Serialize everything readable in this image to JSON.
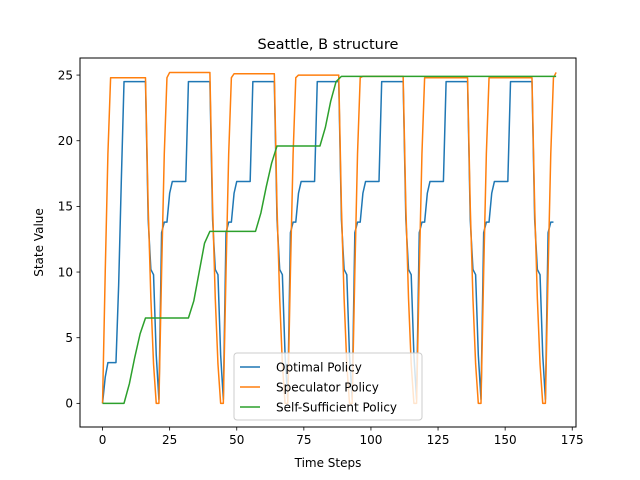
{
  "chart_data": {
    "type": "line",
    "title": "Seattle, B structure",
    "xlabel": "Time Steps",
    "ylabel": "State Value",
    "xlim": [
      -8.4,
      176.4
    ],
    "ylim": [
      -1.8,
      26.3
    ],
    "xticks": [
      0,
      25,
      50,
      75,
      100,
      125,
      150,
      175
    ],
    "yticks": [
      0,
      5,
      10,
      15,
      20,
      25
    ],
    "grid": false,
    "legend_position": "lower-center",
    "series": [
      {
        "name": "Optimal Policy",
        "color": "#1f77b4",
        "points": [
          [
            0,
            0
          ],
          [
            1,
            2
          ],
          [
            2,
            3.1
          ],
          [
            5,
            3.1
          ],
          [
            6,
            9
          ],
          [
            7,
            17
          ],
          [
            8,
            24.5
          ],
          [
            16,
            24.5
          ],
          [
            17,
            14
          ],
          [
            18,
            10.2
          ],
          [
            19,
            9.8
          ],
          [
            20,
            3.7
          ],
          [
            21,
            0.3
          ],
          [
            22,
            13
          ],
          [
            23,
            13.8
          ],
          [
            24,
            13.8
          ],
          [
            25,
            16
          ],
          [
            26,
            16.9
          ],
          [
            31,
            16.9
          ],
          [
            32,
            24.5
          ],
          [
            40,
            24.5
          ],
          [
            41,
            14
          ],
          [
            42,
            10.2
          ],
          [
            43,
            9.8
          ],
          [
            44,
            3.7
          ],
          [
            45,
            0.3
          ],
          [
            46,
            13
          ],
          [
            47,
            13.8
          ],
          [
            48,
            13.8
          ],
          [
            49,
            16
          ],
          [
            50,
            16.9
          ],
          [
            55,
            16.9
          ],
          [
            56,
            24.5
          ],
          [
            64,
            24.5
          ],
          [
            65,
            14
          ],
          [
            66,
            10.2
          ],
          [
            67,
            9.8
          ],
          [
            68,
            3.7
          ],
          [
            69,
            0.3
          ],
          [
            70,
            13
          ],
          [
            71,
            13.8
          ],
          [
            72,
            13.8
          ],
          [
            73,
            16
          ],
          [
            74,
            16.9
          ],
          [
            79,
            16.9
          ],
          [
            80,
            24.5
          ],
          [
            88,
            24.5
          ],
          [
            89,
            14
          ],
          [
            90,
            10.2
          ],
          [
            91,
            9.8
          ],
          [
            92,
            3.7
          ],
          [
            93,
            0.3
          ],
          [
            94,
            13
          ],
          [
            95,
            13.8
          ],
          [
            96,
            13.8
          ],
          [
            97,
            16
          ],
          [
            98,
            16.9
          ],
          [
            103,
            16.9
          ],
          [
            104,
            24.5
          ],
          [
            112,
            24.5
          ],
          [
            113,
            14
          ],
          [
            114,
            10.2
          ],
          [
            115,
            9.8
          ],
          [
            116,
            3.7
          ],
          [
            117,
            0.3
          ],
          [
            118,
            13
          ],
          [
            119,
            13.8
          ],
          [
            120,
            13.8
          ],
          [
            121,
            16
          ],
          [
            122,
            16.9
          ],
          [
            127,
            16.9
          ],
          [
            128,
            24.5
          ],
          [
            136,
            24.5
          ],
          [
            137,
            14
          ],
          [
            138,
            10.2
          ],
          [
            139,
            9.8
          ],
          [
            140,
            3.7
          ],
          [
            141,
            0.3
          ],
          [
            142,
            13
          ],
          [
            143,
            13.8
          ],
          [
            144,
            13.8
          ],
          [
            145,
            16
          ],
          [
            146,
            16.9
          ],
          [
            151,
            16.9
          ],
          [
            152,
            24.5
          ],
          [
            160,
            24.5
          ],
          [
            161,
            14
          ],
          [
            162,
            10.2
          ],
          [
            163,
            9.8
          ],
          [
            164,
            3.7
          ],
          [
            165,
            0.3
          ],
          [
            166,
            13
          ],
          [
            167,
            13.8
          ],
          [
            168,
            13.8
          ]
        ]
      },
      {
        "name": "Speculator Policy",
        "color": "#ff7f0e",
        "points": [
          [
            0,
            0
          ],
          [
            1,
            10
          ],
          [
            2,
            19
          ],
          [
            3,
            24.8
          ],
          [
            16,
            24.8
          ],
          [
            17,
            15
          ],
          [
            18,
            8
          ],
          [
            19,
            3
          ],
          [
            20,
            0
          ],
          [
            21,
            0
          ],
          [
            22,
            10
          ],
          [
            23,
            19
          ],
          [
            24,
            24.8
          ],
          [
            25,
            25.2
          ],
          [
            40,
            25.2
          ],
          [
            41,
            15
          ],
          [
            42,
            8
          ],
          [
            43,
            3
          ],
          [
            44,
            0
          ],
          [
            45,
            0
          ],
          [
            46,
            10
          ],
          [
            47,
            19
          ],
          [
            48,
            24.8
          ],
          [
            49,
            25.1
          ],
          [
            64,
            25.1
          ],
          [
            65,
            15
          ],
          [
            66,
            8
          ],
          [
            67,
            3
          ],
          [
            68,
            0
          ],
          [
            69,
            0
          ],
          [
            70,
            10
          ],
          [
            71,
            19
          ],
          [
            72,
            24.8
          ],
          [
            73,
            25
          ],
          [
            88,
            25
          ],
          [
            89,
            15
          ],
          [
            90,
            8
          ],
          [
            91,
            3
          ],
          [
            92,
            0
          ],
          [
            93,
            0
          ],
          [
            94,
            10
          ],
          [
            95,
            19
          ],
          [
            96,
            24.8
          ],
          [
            97,
            24.9
          ],
          [
            112,
            24.9
          ],
          [
            113,
            15
          ],
          [
            114,
            8
          ],
          [
            115,
            3
          ],
          [
            116,
            0
          ],
          [
            117,
            0
          ],
          [
            118,
            10
          ],
          [
            119,
            19
          ],
          [
            120,
            24.8
          ],
          [
            136,
            24.8
          ],
          [
            137,
            15
          ],
          [
            138,
            8
          ],
          [
            139,
            3
          ],
          [
            140,
            0
          ],
          [
            141,
            0
          ],
          [
            142,
            10
          ],
          [
            143,
            19
          ],
          [
            144,
            24.8
          ],
          [
            160,
            24.8
          ],
          [
            161,
            15
          ],
          [
            162,
            8
          ],
          [
            163,
            3
          ],
          [
            164,
            0
          ],
          [
            165,
            0
          ],
          [
            166,
            10
          ],
          [
            167,
            19
          ],
          [
            168,
            24.8
          ],
          [
            169,
            25.2
          ]
        ]
      },
      {
        "name": "Self-Sufficient Policy",
        "color": "#2ca02c",
        "points": [
          [
            0,
            0
          ],
          [
            8,
            0
          ],
          [
            10,
            1.5
          ],
          [
            12,
            3.5
          ],
          [
            14,
            5.3
          ],
          [
            16,
            6.5
          ],
          [
            32,
            6.5
          ],
          [
            34,
            7.8
          ],
          [
            36,
            10
          ],
          [
            38,
            12.2
          ],
          [
            40,
            13.1
          ],
          [
            57,
            13.1
          ],
          [
            59,
            14.5
          ],
          [
            61,
            16.5
          ],
          [
            63,
            18.3
          ],
          [
            65,
            19.6
          ],
          [
            81,
            19.6
          ],
          [
            83,
            21
          ],
          [
            85,
            23
          ],
          [
            87,
            24.5
          ],
          [
            89,
            24.9
          ],
          [
            169,
            24.9
          ]
        ]
      }
    ]
  }
}
